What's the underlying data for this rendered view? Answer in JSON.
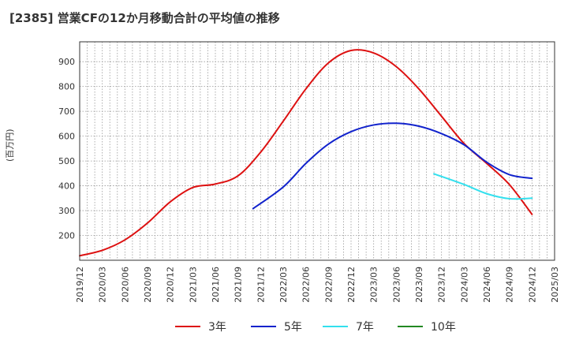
{
  "chart_data": {
    "type": "line",
    "title": "[2385]  営業CFの12か月移動合計の平均値の推移",
    "ylabel": "(百万円)",
    "ylim": [
      100,
      980
    ],
    "yticks": [
      200,
      300,
      400,
      500,
      600,
      700,
      800,
      900
    ],
    "xrange": [
      "2019-12",
      "2025-03"
    ],
    "xticks": [
      "2019/12",
      "2020/03",
      "2020/06",
      "2020/09",
      "2020/12",
      "2021/03",
      "2021/06",
      "2021/09",
      "2021/12",
      "2022/03",
      "2022/06",
      "2022/09",
      "2022/12",
      "2023/03",
      "2023/06",
      "2023/09",
      "2023/12",
      "2024/03",
      "2024/06",
      "2024/09",
      "2024/12",
      "2025/03"
    ],
    "grid": true,
    "legend_position": "bottom",
    "series": [
      {
        "name": "3年",
        "color": "#dd1111",
        "points": [
          [
            "2019-12",
            118
          ],
          [
            "2020-03",
            140
          ],
          [
            "2020-06",
            182
          ],
          [
            "2020-09",
            250
          ],
          [
            "2020-12",
            335
          ],
          [
            "2021-03",
            393
          ],
          [
            "2021-06",
            407
          ],
          [
            "2021-09",
            440
          ],
          [
            "2021-12",
            535
          ],
          [
            "2022-03",
            660
          ],
          [
            "2022-06",
            790
          ],
          [
            "2022-09",
            895
          ],
          [
            "2022-12",
            945
          ],
          [
            "2023-03",
            935
          ],
          [
            "2023-06",
            880
          ],
          [
            "2023-09",
            790
          ],
          [
            "2023-12",
            680
          ],
          [
            "2024-03",
            570
          ],
          [
            "2024-06",
            490
          ],
          [
            "2024-09",
            405
          ],
          [
            "2024-12",
            285
          ]
        ]
      },
      {
        "name": "5年",
        "color": "#1122cc",
        "points": [
          [
            "2021-11",
            308
          ],
          [
            "2022-03",
            395
          ],
          [
            "2022-06",
            490
          ],
          [
            "2022-09",
            568
          ],
          [
            "2022-12",
            618
          ],
          [
            "2023-03",
            645
          ],
          [
            "2023-06",
            652
          ],
          [
            "2023-09",
            640
          ],
          [
            "2023-12",
            610
          ],
          [
            "2024-03",
            565
          ],
          [
            "2024-06",
            495
          ],
          [
            "2024-09",
            445
          ],
          [
            "2024-12",
            430
          ]
        ]
      },
      {
        "name": "7年",
        "color": "#33e0ee",
        "points": [
          [
            "2023-11",
            448
          ],
          [
            "2024-03",
            405
          ],
          [
            "2024-06",
            368
          ],
          [
            "2024-09",
            348
          ],
          [
            "2024-12",
            350
          ]
        ]
      },
      {
        "name": "10年",
        "color": "#228822",
        "points": []
      }
    ]
  }
}
